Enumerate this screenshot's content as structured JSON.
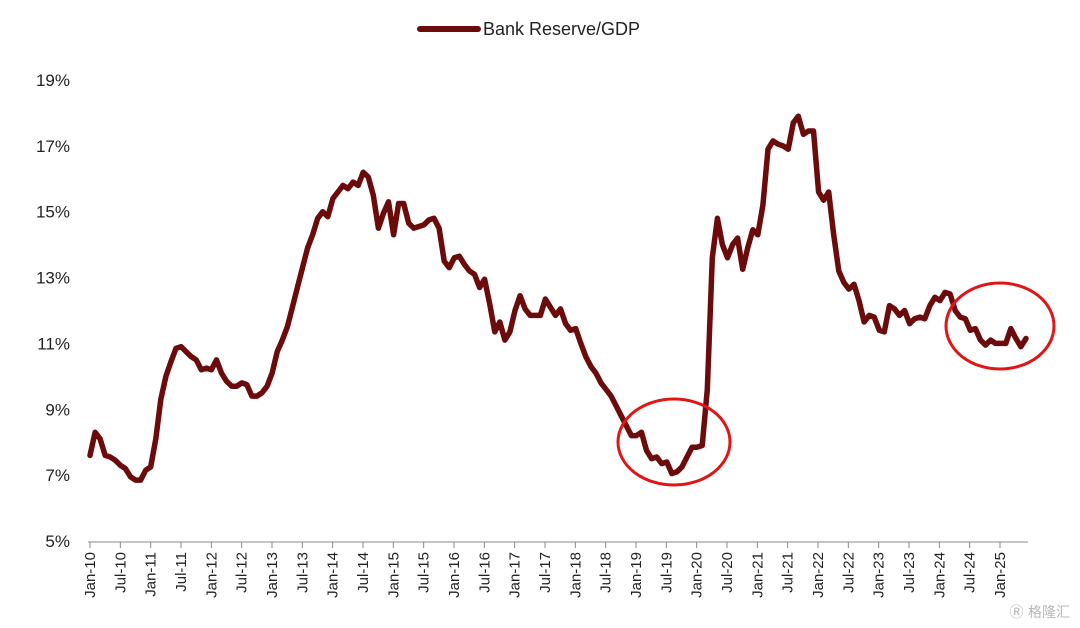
{
  "chart_data": {
    "type": "line",
    "legend": {
      "position": "top-center"
    },
    "series": [
      {
        "name": "Bank Reserve/GDP",
        "color": "#6b0b0b",
        "values": [
          7.6,
          8.3,
          8.1,
          7.6,
          7.55,
          7.45,
          7.3,
          7.2,
          6.95,
          6.85,
          6.85,
          7.15,
          7.25,
          8.1,
          9.3,
          10.0,
          10.45,
          10.85,
          10.9,
          10.75,
          10.6,
          10.5,
          10.2,
          10.25,
          10.2,
          10.5,
          10.1,
          9.85,
          9.7,
          9.7,
          9.8,
          9.75,
          9.4,
          9.4,
          9.5,
          9.7,
          10.1,
          10.75,
          11.1,
          11.5,
          12.1,
          12.7,
          13.3,
          13.9,
          14.3,
          14.8,
          15.0,
          14.85,
          15.4,
          15.6,
          15.8,
          15.7,
          15.9,
          15.8,
          16.2,
          16.05,
          15.5,
          14.5,
          14.95,
          15.3,
          14.3,
          15.25,
          15.25,
          14.65,
          14.5,
          14.55,
          14.6,
          14.75,
          14.8,
          14.5,
          13.5,
          13.3,
          13.6,
          13.65,
          13.4,
          13.2,
          13.1,
          12.7,
          12.95,
          12.2,
          11.35,
          11.65,
          11.1,
          11.35,
          12.0,
          12.45,
          12.05,
          11.85,
          11.85,
          11.85,
          12.35,
          12.1,
          11.85,
          12.05,
          11.6,
          11.4,
          11.45,
          11.0,
          10.6,
          10.3,
          10.1,
          9.8,
          9.6,
          9.4,
          9.1,
          8.8,
          8.5,
          8.2,
          8.2,
          8.3,
          7.75,
          7.5,
          7.55,
          7.35,
          7.4,
          7.05,
          7.1,
          7.25,
          7.55,
          7.85,
          7.85,
          7.9,
          9.6,
          13.6,
          14.8,
          14.0,
          13.6,
          14.0,
          14.2,
          13.25,
          13.9,
          14.45,
          14.3,
          15.2,
          16.9,
          17.15,
          17.05,
          17.0,
          16.9,
          17.7,
          17.9,
          17.35,
          17.45,
          17.45,
          15.6,
          15.35,
          15.6,
          14.3,
          13.2,
          12.85,
          12.65,
          12.8,
          12.3,
          11.65,
          11.85,
          11.8,
          11.4,
          11.35,
          12.15,
          12.05,
          11.85,
          12.0,
          11.6,
          11.75,
          11.8,
          11.75,
          12.15,
          12.4,
          12.3,
          12.55,
          12.5,
          12.0,
          11.8,
          11.75,
          11.4,
          11.45,
          11.1,
          10.95,
          11.1,
          11.0,
          11.0,
          11.0,
          11.45,
          11.15,
          10.9,
          11.15
        ]
      }
    ],
    "x_tick_labels": [
      "Jan-10",
      "Jul-10",
      "Jan-11",
      "Jul-11",
      "Jan-12",
      "Jul-12",
      "Jan-13",
      "Jul-13",
      "Jan-14",
      "Jul-14",
      "Jan-15",
      "Jul-15",
      "Jan-16",
      "Jul-16",
      "Jan-17",
      "Jul-17",
      "Jan-18",
      "Jul-18",
      "Jan-19",
      "Jul-19",
      "Jan-20",
      "Jul-20",
      "Jan-21",
      "Jul-21",
      "Jan-22",
      "Jul-22",
      "Jan-23",
      "Jul-23",
      "Jan-24",
      "Jul-24",
      "Jan-25"
    ],
    "y_tick_labels": [
      "5%",
      "7%",
      "9%",
      "11%",
      "13%",
      "15%",
      "17%",
      "19%"
    ],
    "ylim": [
      5,
      19
    ],
    "grid": false,
    "annotations": [
      {
        "type": "ellipse",
        "color": "#e01616",
        "around": "Jan-19 to Jan-20 trough"
      },
      {
        "type": "ellipse",
        "color": "#e01616",
        "around": "Jan-24 to latest values"
      }
    ]
  },
  "watermark": {
    "text": "格隆汇"
  }
}
